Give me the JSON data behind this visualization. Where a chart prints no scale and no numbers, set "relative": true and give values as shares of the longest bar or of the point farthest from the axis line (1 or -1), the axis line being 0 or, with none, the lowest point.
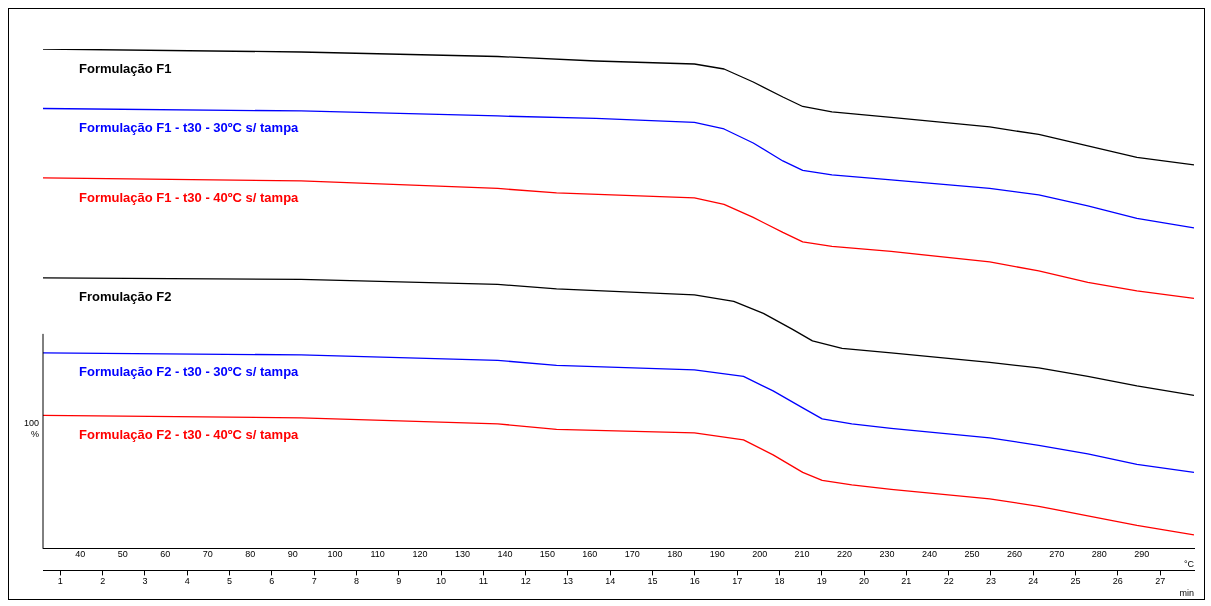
{
  "chart_data": {
    "type": "line",
    "relative": true,
    "xlabel": "min",
    "x2label": "°C",
    "ylabel": "100 %",
    "legend": false,
    "grid": false,
    "marker": "none",
    "line_style": "solid",
    "xlim": [
      0.59,
      27.8
    ],
    "xticks": [
      1,
      2,
      3,
      4,
      5,
      6,
      7,
      8,
      9,
      10,
      11,
      12,
      13,
      14,
      15,
      16,
      17,
      18,
      19,
      20,
      21,
      22,
      23,
      24,
      25,
      26,
      27
    ],
    "x2lim": [
      31.2,
      302.3
    ],
    "x2ticks": [
      40,
      50,
      60,
      70,
      80,
      90,
      100,
      110,
      120,
      130,
      140,
      150,
      160,
      170,
      180,
      190,
      200,
      210,
      220,
      230,
      240,
      250,
      260,
      270,
      280,
      290
    ],
    "series": [
      {
        "name": "Formulação F1",
        "color": "#000000",
        "x": [
          0.59,
          6.69,
          11.34,
          13.66,
          15.99,
          16.69,
          17.38,
          18.08,
          18.55,
          19.24,
          20.64,
          22.97,
          24.13,
          25.29,
          26.45,
          27.8
        ],
        "values": [
          1,
          0.994,
          0.985,
          0.976,
          0.97,
          0.96,
          0.934,
          0.904,
          0.885,
          0.874,
          0.863,
          0.844,
          0.829,
          0.806,
          0.783,
          0.768
        ]
      },
      {
        "name": "Formulação F1 - t30 - 30ºC s/ tampa",
        "color": "#0000ff",
        "x": [
          0.59,
          6.69,
          11.34,
          13.66,
          15.99,
          16.69,
          17.38,
          18.08,
          18.55,
          19.24,
          20.64,
          22.97,
          24.13,
          25.29,
          26.45,
          27.8
        ],
        "values": [
          0.881,
          0.876,
          0.866,
          0.861,
          0.853,
          0.84,
          0.812,
          0.776,
          0.757,
          0.748,
          0.738,
          0.721,
          0.708,
          0.686,
          0.661,
          0.642
        ]
      },
      {
        "name": "Formulação F1 - t30 - 40ºC s/ tampa",
        "color": "#ff0000",
        "x": [
          0.59,
          6.69,
          11.34,
          12.73,
          15.99,
          16.69,
          17.38,
          18.08,
          18.55,
          19.24,
          20.64,
          22.97,
          24.13,
          25.29,
          26.45,
          27.8
        ],
        "values": [
          0.742,
          0.736,
          0.721,
          0.712,
          0.702,
          0.689,
          0.663,
          0.633,
          0.614,
          0.605,
          0.595,
          0.574,
          0.556,
          0.533,
          0.516,
          0.501
        ]
      },
      {
        "name": "Fromulação F2",
        "color": "#000000",
        "x": [
          0.59,
          6.69,
          11.34,
          12.73,
          15.99,
          16.92,
          17.62,
          18.31,
          18.78,
          19.48,
          20.64,
          22.97,
          24.13,
          25.29,
          26.45,
          27.8
        ],
        "values": [
          0.542,
          0.539,
          0.529,
          0.52,
          0.508,
          0.495,
          0.471,
          0.439,
          0.416,
          0.401,
          0.392,
          0.373,
          0.362,
          0.345,
          0.326,
          0.307
        ]
      },
      {
        "name": "Formulação F2 - t30 - 30ºC s/ tampa",
        "color": "#0000ff",
        "x": [
          0.59,
          6.69,
          11.34,
          12.73,
          15.99,
          17.15,
          17.85,
          18.55,
          19.01,
          19.71,
          20.64,
          22.97,
          24.13,
          25.29,
          26.45,
          27.8
        ],
        "values": [
          0.392,
          0.388,
          0.377,
          0.367,
          0.358,
          0.345,
          0.316,
          0.282,
          0.26,
          0.25,
          0.241,
          0.222,
          0.207,
          0.19,
          0.169,
          0.153
        ]
      },
      {
        "name": "Formulação F2 - t30 - 40ºC s/ tampa",
        "color": "#ff0000",
        "x": [
          0.59,
          6.69,
          11.34,
          12.73,
          15.99,
          17.15,
          17.85,
          18.55,
          19.01,
          19.71,
          20.64,
          22.97,
          24.13,
          25.29,
          26.45,
          27.8
        ],
        "values": [
          0.267,
          0.262,
          0.25,
          0.239,
          0.232,
          0.218,
          0.188,
          0.153,
          0.137,
          0.128,
          0.119,
          0.1,
          0.085,
          0.066,
          0.047,
          0.028
        ]
      }
    ]
  }
}
